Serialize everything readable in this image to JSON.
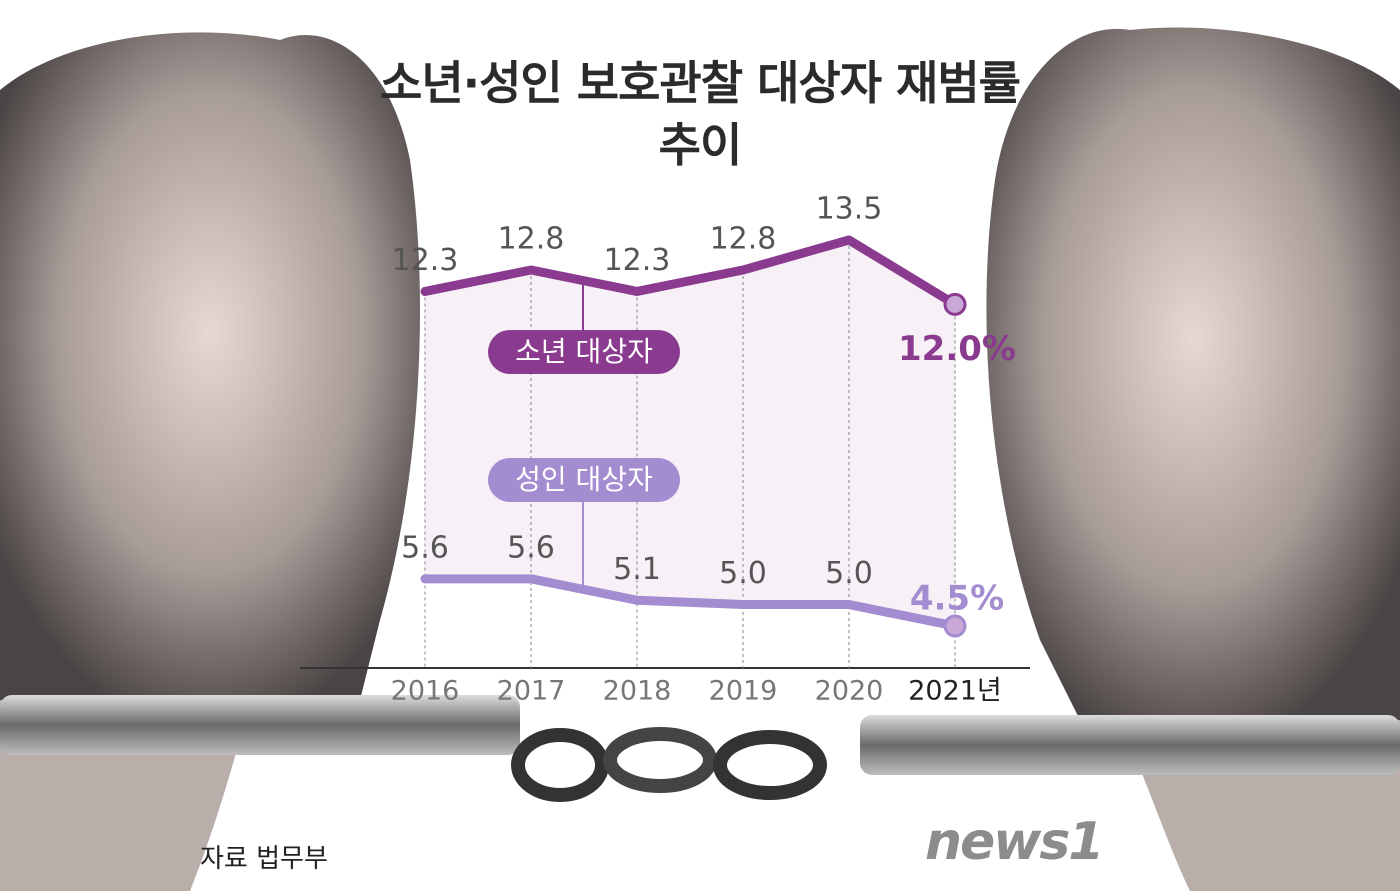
{
  "chart_data": {
    "type": "line",
    "title": "소년·성인 보호관찰 대상자 재범률 추이",
    "source": "자료 법무부",
    "logo": "news1",
    "categories": [
      "2016",
      "2017",
      "2018",
      "2019",
      "2020",
      "2021년"
    ],
    "series": [
      {
        "name": "소년 대상자",
        "color": "#8a3a8f",
        "values": [
          12.3,
          12.8,
          12.3,
          12.8,
          13.5,
          12.0
        ],
        "value_labels": [
          "12.3",
          "12.8",
          "12.3",
          "12.8",
          "13.5",
          "12.0%"
        ]
      },
      {
        "name": "성인 대상자",
        "color": "#a38ccf",
        "values": [
          5.6,
          5.6,
          5.1,
          5.0,
          5.0,
          4.5
        ],
        "value_labels": [
          "5.6",
          "5.6",
          "5.1",
          "5.0",
          "5.0",
          "4.5%"
        ]
      }
    ]
  }
}
